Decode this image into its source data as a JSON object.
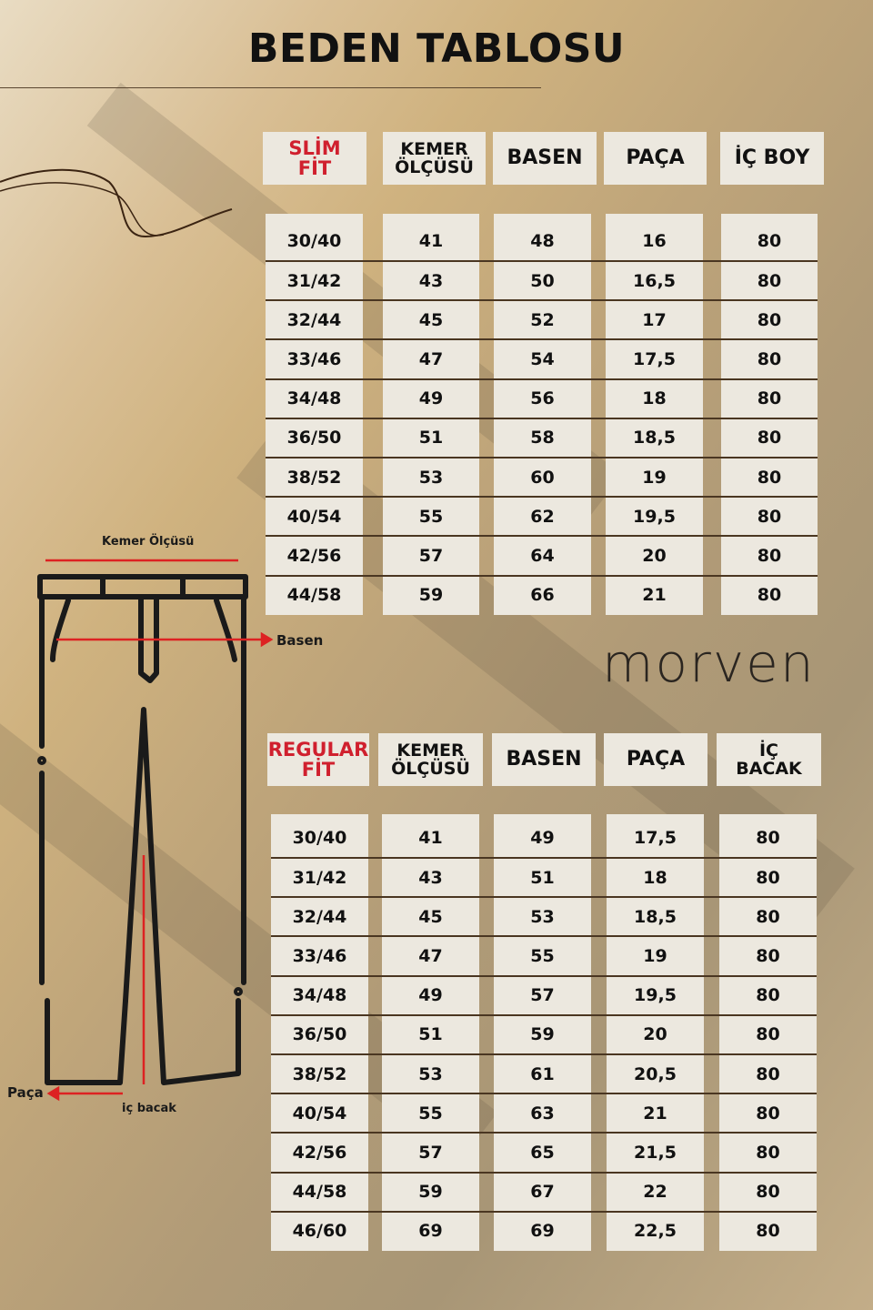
{
  "title": "BEDEN TABLOSU",
  "brand": "morven",
  "colors": {
    "accent_red": "#d0202e",
    "cell_bg": "#ece8df",
    "separator": "#4a3621"
  },
  "diagram": {
    "labels": {
      "waist": "Kemer Ölçüsü",
      "hip": "Basen",
      "hem": "Paça",
      "inseam": "iç bacak"
    }
  },
  "slim": {
    "headers": [
      "SLİM\nFİT",
      "KEMER\nÖLÇÜSÜ",
      "BASEN",
      "PAÇA",
      "İÇ BOY"
    ],
    "rows": [
      [
        "30/40",
        "41",
        "48",
        "16",
        "80"
      ],
      [
        "31/42",
        "43",
        "50",
        "16,5",
        "80"
      ],
      [
        "32/44",
        "45",
        "52",
        "17",
        "80"
      ],
      [
        "33/46",
        "47",
        "54",
        "17,5",
        "80"
      ],
      [
        "34/48",
        "49",
        "56",
        "18",
        "80"
      ],
      [
        "36/50",
        "51",
        "58",
        "18,5",
        "80"
      ],
      [
        "38/52",
        "53",
        "60",
        "19",
        "80"
      ],
      [
        "40/54",
        "55",
        "62",
        "19,5",
        "80"
      ],
      [
        "42/56",
        "57",
        "64",
        "20",
        "80"
      ],
      [
        "44/58",
        "59",
        "66",
        "21",
        "80"
      ]
    ]
  },
  "regular": {
    "headers": [
      "REGULAR\nFİT",
      "KEMER\nÖLÇÜSÜ",
      "BASEN",
      "PAÇA",
      "İÇ\nBACAK"
    ],
    "rows": [
      [
        "30/40",
        "41",
        "49",
        "17,5",
        "80"
      ],
      [
        "31/42",
        "43",
        "51",
        "18",
        "80"
      ],
      [
        "32/44",
        "45",
        "53",
        "18,5",
        "80"
      ],
      [
        "33/46",
        "47",
        "55",
        "19",
        "80"
      ],
      [
        "34/48",
        "49",
        "57",
        "19,5",
        "80"
      ],
      [
        "36/50",
        "51",
        "59",
        "20",
        "80"
      ],
      [
        "38/52",
        "53",
        "61",
        "20,5",
        "80"
      ],
      [
        "40/54",
        "55",
        "63",
        "21",
        "80"
      ],
      [
        "42/56",
        "57",
        "65",
        "21,5",
        "80"
      ],
      [
        "44/58",
        "59",
        "67",
        "22",
        "80"
      ],
      [
        "46/60",
        "69",
        "69",
        "22,5",
        "80"
      ]
    ]
  }
}
